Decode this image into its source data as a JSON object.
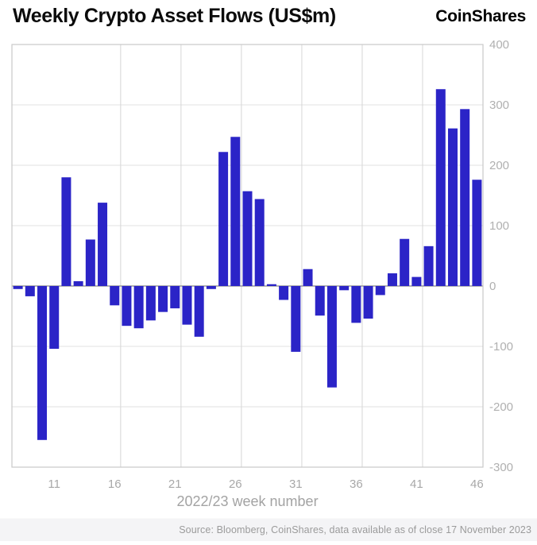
{
  "header": {
    "title": "Weekly Crypto Asset Flows (US$m)",
    "brand": "CoinShares"
  },
  "chart_data": {
    "type": "bar",
    "title": "Weekly Crypto Asset Flows (US$m)",
    "x_label": "2022/23 week number",
    "weeks": [
      8,
      9,
      10,
      11,
      12,
      13,
      14,
      15,
      16,
      17,
      18,
      19,
      20,
      21,
      22,
      23,
      24,
      25,
      26,
      27,
      28,
      29,
      30,
      31,
      32,
      33,
      34,
      35,
      36,
      37,
      38,
      39,
      40,
      41,
      42,
      43,
      44,
      45,
      46
    ],
    "values": [
      -5,
      -17,
      -255,
      -104,
      180,
      8,
      77,
      138,
      -32,
      -66,
      -70,
      -57,
      -43,
      -37,
      -64,
      -84,
      -5,
      222,
      247,
      157,
      144,
      3,
      -23,
      -109,
      28,
      -49,
      -168,
      -7,
      -61,
      -54,
      -15,
      21,
      78,
      15,
      66,
      326,
      261,
      293,
      176
    ],
    "x_ticks": [
      11,
      16,
      21,
      26,
      31,
      36,
      41,
      46
    ],
    "y_ticks": [
      400,
      300,
      200,
      100,
      0,
      -100,
      -200,
      -300
    ],
    "ylim": [
      -300,
      400
    ],
    "vertical_grid_after_weeks": [
      16,
      21,
      26,
      31,
      36,
      41
    ],
    "grid": true,
    "legend": "none",
    "colors": {
      "bar": "#2b24c7",
      "grid_h": "#e2e2e2",
      "grid_v": "#d6d6d6",
      "zero_line": "#9a9a9a",
      "border": "#c9c9c9",
      "tick_label": "#b0b0b0"
    }
  },
  "footer": {
    "source": "Source: Bloomberg, CoinShares, data available as of close 17 November 2023"
  }
}
